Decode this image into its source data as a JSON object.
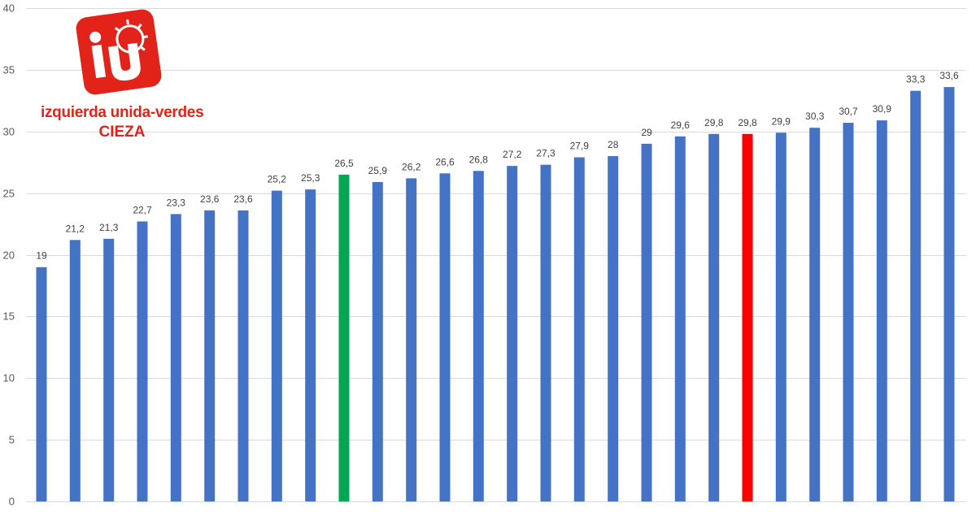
{
  "logo": {
    "line1": "izquierda unida-verdes",
    "line2": "CIEZA",
    "brand_color": "#e2231a"
  },
  "chart_data": {
    "type": "bar",
    "title": "",
    "xlabel": "",
    "ylabel": "",
    "ylim": [
      0,
      40
    ],
    "yticks": [
      0,
      5,
      10,
      15,
      20,
      25,
      30,
      35,
      40
    ],
    "ytick_labels": [
      "0",
      "5",
      "10",
      "15",
      "20",
      "25",
      "30",
      "35",
      "40"
    ],
    "grid": true,
    "legend": "none",
    "values": [
      19,
      21.2,
      21.3,
      22.7,
      23.3,
      23.6,
      23.6,
      25.2,
      25.3,
      26.5,
      25.9,
      26.2,
      26.6,
      26.8,
      27.2,
      27.3,
      27.9,
      28,
      29,
      29.6,
      29.8,
      29.8,
      29.9,
      30.3,
      30.7,
      30.9,
      33.3,
      33.6
    ],
    "data_labels": [
      "19",
      "21,2",
      "21,3",
      "22,7",
      "23,3",
      "23,6",
      "23,6",
      "25,2",
      "25,3",
      "26,5",
      "25,9",
      "26,2",
      "26,6",
      "26,8",
      "27,2",
      "27,3",
      "27,9",
      "28",
      "29",
      "29,6",
      "29,8",
      "29,8",
      "29,9",
      "30,3",
      "30,7",
      "30,9",
      "33,3",
      "33,6"
    ],
    "colors": {
      "default": "#4472c4",
      "highlight_green": "#00a651",
      "highlight_red": "#ff0000"
    },
    "highlighted": [
      {
        "index": 9,
        "color": "#00a651"
      },
      {
        "index": 21,
        "color": "#ff0000"
      }
    ]
  }
}
